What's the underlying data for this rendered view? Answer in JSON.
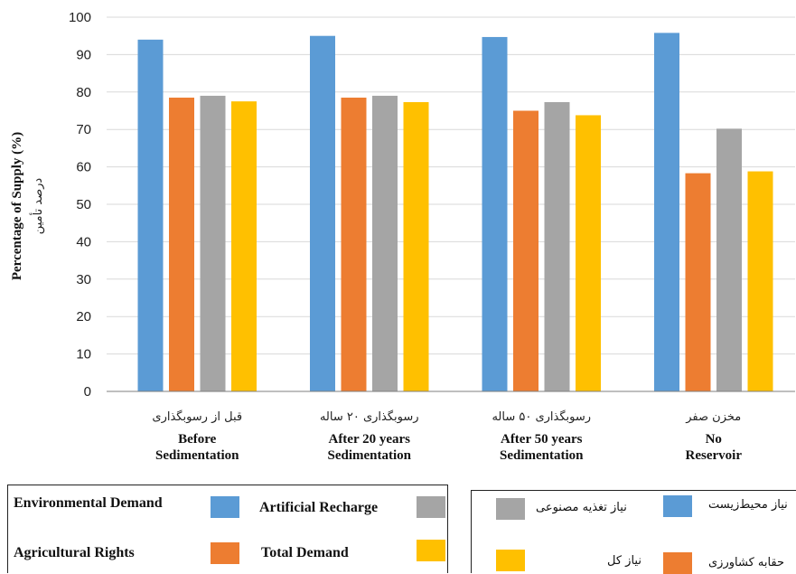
{
  "colors": {
    "environmental": "#5B9BD5",
    "agricultural": "#ED7D31",
    "artificial": "#A5A5A5",
    "total": "#FFC000",
    "grid": "#D9D9D9",
    "axis": "#7F7F7F"
  },
  "chart_data": {
    "type": "bar",
    "ylabel": "Percentage of Supply (%)",
    "ylabel_fa": "درصد تأمین",
    "ylim": [
      0,
      100
    ],
    "yticks": [
      "0",
      "10",
      "20",
      "30",
      "40",
      "50",
      "60",
      "70",
      "80",
      "90",
      "100"
    ],
    "grid": true,
    "categories": [
      {
        "fa": "قبل از رسوبگذاری",
        "en1": "Before",
        "en2": "Sedimentation"
      },
      {
        "fa": "رسوبگذاری ۲۰ ساله",
        "en1": "After 20 years",
        "en2": "Sedimentation"
      },
      {
        "fa": "رسوبگذاری ۵۰ ساله",
        "en1": "After 50 years",
        "en2": "Sedimentation"
      },
      {
        "fa": "مخزن صفر",
        "en1": "No",
        "en2": "Reservoir"
      }
    ],
    "series": [
      {
        "name": "Environmental Demand",
        "name_fa": "نیاز محیط‌زیست",
        "color_key": "environmental",
        "values": [
          94,
          95,
          94.7,
          95.8
        ]
      },
      {
        "name": "Agricultural Rights",
        "name_fa": "حقابه کشاورزی",
        "color_key": "agricultural",
        "values": [
          78.5,
          78.5,
          75,
          58.3
        ]
      },
      {
        "name": "Artificial Recharge",
        "name_fa": "نیاز تغذیه مصنوعی",
        "color_key": "artificial",
        "values": [
          79,
          79,
          77.3,
          70.2
        ]
      },
      {
        "name": "Total Demand",
        "name_fa": "نیاز کل",
        "color_key": "total",
        "values": [
          77.5,
          77.3,
          73.8,
          58.8
        ]
      }
    ]
  }
}
